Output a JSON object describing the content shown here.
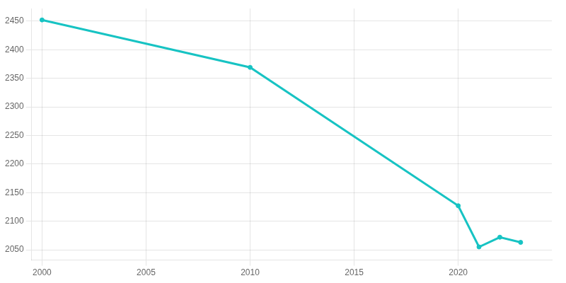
{
  "chart_data": {
    "type": "line",
    "x": [
      2000,
      2010,
      2020,
      2021,
      2022,
      2023
    ],
    "values": [
      2452,
      2369,
      2127,
      2055,
      2072,
      2063
    ],
    "color": "#17c3c3",
    "marker": "circle",
    "xlim": [
      1999.5,
      2024.5
    ],
    "ylim": [
      2032,
      2472
    ],
    "xticks": [
      2000,
      2005,
      2010,
      2015,
      2020
    ],
    "yticks": [
      2050,
      2100,
      2150,
      2200,
      2250,
      2300,
      2350,
      2400,
      2450
    ],
    "grid": true
  }
}
